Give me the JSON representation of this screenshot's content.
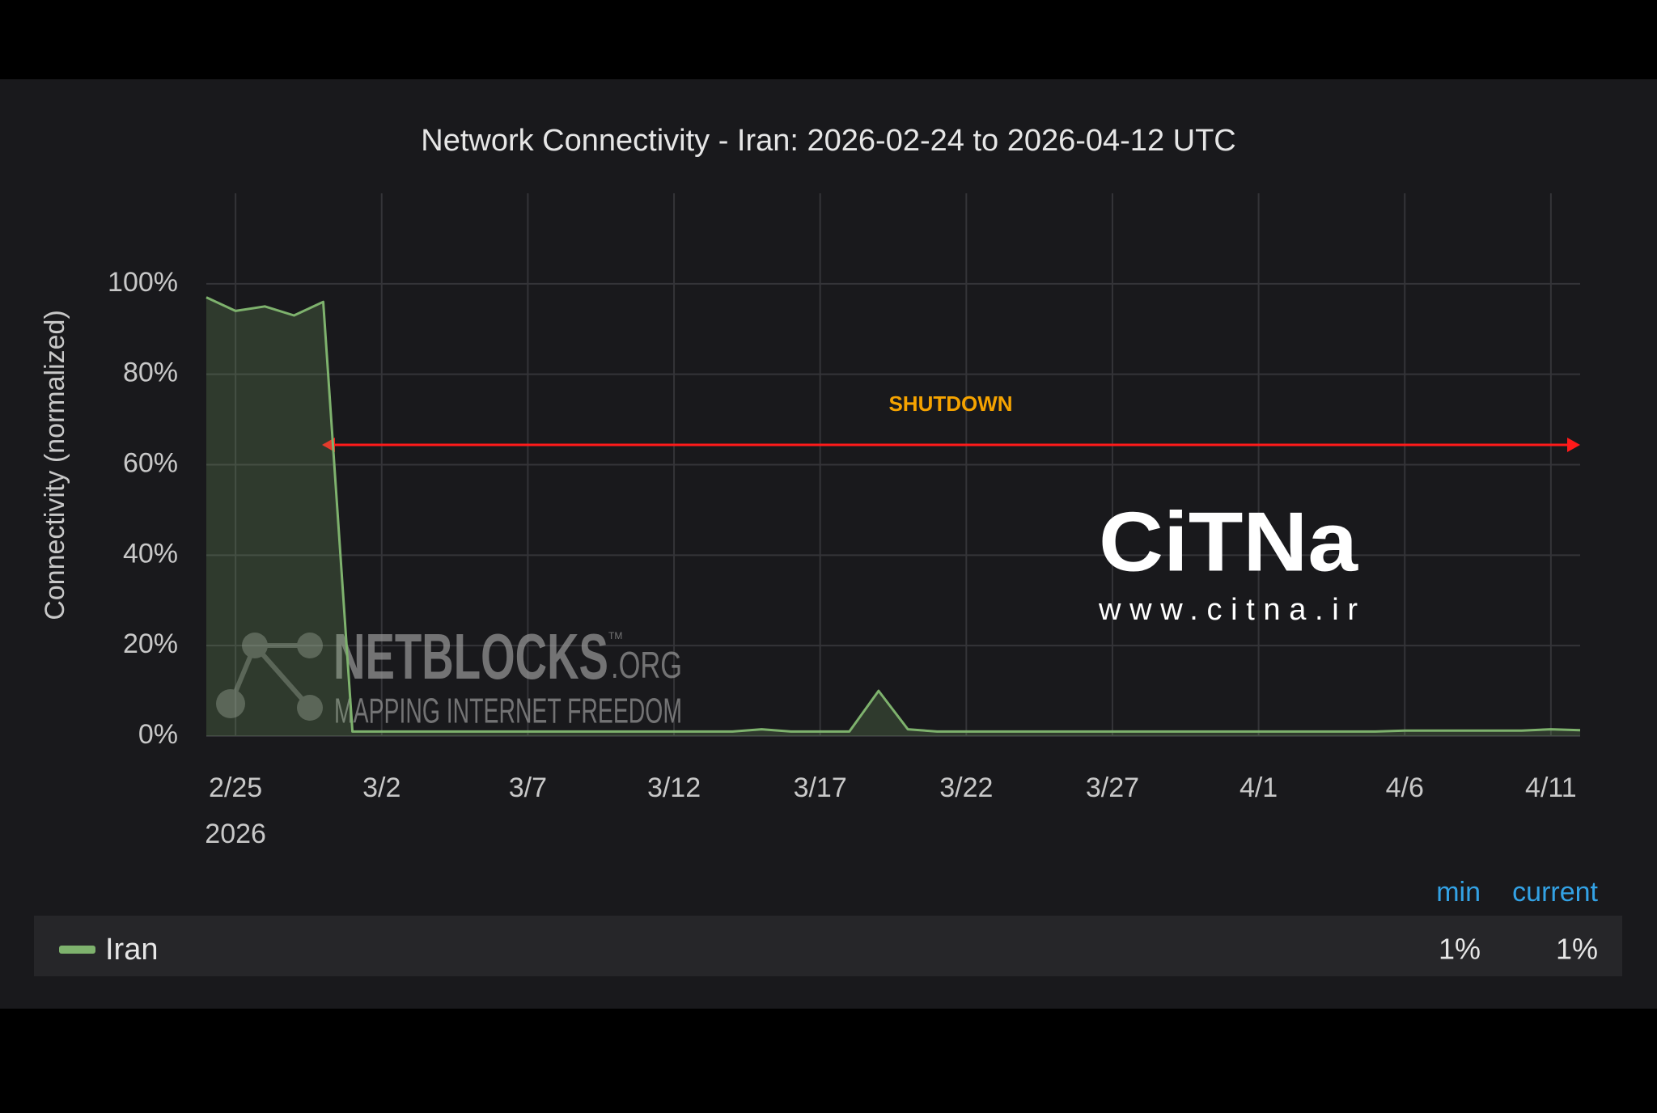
{
  "chart_data": {
    "type": "line",
    "title": "Network Connectivity - Iran: 2026-02-24 to 2026-04-12 UTC",
    "y_label": "Connectivity (normalized)",
    "x": [
      "2026-02-24",
      "2026-02-25",
      "2026-02-26",
      "2026-02-27",
      "2026-02-28",
      "2026-03-01",
      "2026-03-02",
      "2026-03-03",
      "2026-03-04",
      "2026-03-05",
      "2026-03-06",
      "2026-03-07",
      "2026-03-08",
      "2026-03-09",
      "2026-03-10",
      "2026-03-11",
      "2026-03-12",
      "2026-03-13",
      "2026-03-14",
      "2026-03-15",
      "2026-03-16",
      "2026-03-17",
      "2026-03-18",
      "2026-03-19",
      "2026-03-20",
      "2026-03-21",
      "2026-03-22",
      "2026-03-23",
      "2026-03-24",
      "2026-03-25",
      "2026-03-26",
      "2026-03-27",
      "2026-03-28",
      "2026-03-29",
      "2026-03-30",
      "2026-03-31",
      "2026-04-01",
      "2026-04-02",
      "2026-04-03",
      "2026-04-04",
      "2026-04-05",
      "2026-04-06",
      "2026-04-07",
      "2026-04-08",
      "2026-04-09",
      "2026-04-10",
      "2026-04-11",
      "2026-04-12"
    ],
    "series": [
      {
        "name": "Iran",
        "color": "#7eb26d",
        "values": [
          97,
          94,
          95,
          93,
          96,
          1,
          1,
          1,
          1,
          1,
          1,
          1,
          1,
          1,
          1,
          1,
          1,
          1,
          1,
          1.5,
          1,
          1,
          1,
          10,
          1.5,
          1,
          1,
          1,
          1,
          1,
          1,
          1,
          1,
          1,
          1,
          1,
          1,
          1,
          1,
          1,
          1,
          1.2,
          1.2,
          1.2,
          1.2,
          1.2,
          1.5,
          1.3
        ]
      }
    ],
    "xlim": [
      "2026-02-24",
      "2026-04-12"
    ],
    "xticks": [
      {
        "value": "2026-02-25",
        "label": "2/25"
      },
      {
        "value": "2026-03-02",
        "label": "3/2"
      },
      {
        "value": "2026-03-07",
        "label": "3/7"
      },
      {
        "value": "2026-03-12",
        "label": "3/12"
      },
      {
        "value": "2026-03-17",
        "label": "3/17"
      },
      {
        "value": "2026-03-22",
        "label": "3/22"
      },
      {
        "value": "2026-03-27",
        "label": "3/27"
      },
      {
        "value": "2026-04-01",
        "label": "4/1"
      },
      {
        "value": "2026-04-06",
        "label": "4/6"
      },
      {
        "value": "2026-04-11",
        "label": "4/11"
      }
    ],
    "x_year_label": "2026",
    "ylim": [
      0,
      120
    ],
    "yticks": [
      {
        "value": 0,
        "label": "0%"
      },
      {
        "value": 20,
        "label": "20%"
      },
      {
        "value": 40,
        "label": "40%"
      },
      {
        "value": 60,
        "label": "60%"
      },
      {
        "value": 80,
        "label": "80%"
      },
      {
        "value": 100,
        "label": "100%"
      }
    ],
    "grid": true,
    "annotation": "SHUTDOWN",
    "watermarks": {
      "netblocks": "NETBLOCKS",
      "netblocks_suffix": ".ORG",
      "tm": "TM",
      "tagline": "MAPPING INTERNET FREEDOM",
      "citna": "CiTNa",
      "citna_url": "www.citna.ir"
    },
    "legend_table": {
      "columns": [
        "min",
        "current"
      ],
      "cells": [
        "1%",
        "1%"
      ]
    }
  }
}
